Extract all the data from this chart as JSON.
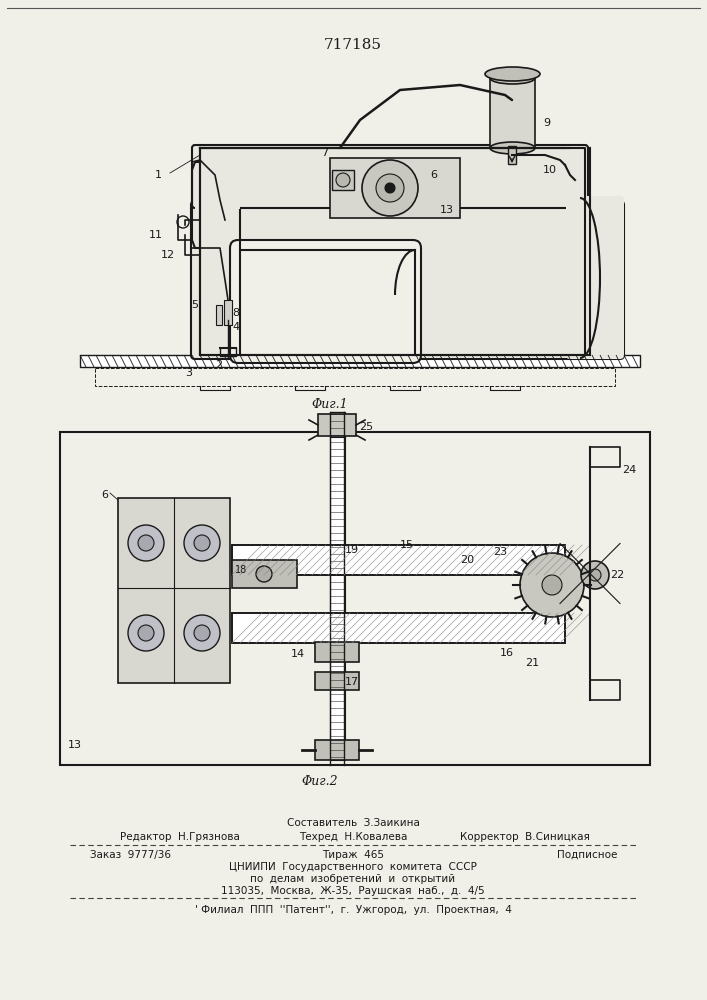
{
  "title": "717185",
  "bg_color": "#f0efe8",
  "line_color": "#1a1a1a",
  "fig1_caption": "Φиг.1",
  "fig2_caption": "Φиг.2",
  "footer": {
    "line1_left": "Редактор  Н.Грязнова",
    "line1_center": "Составитель  З.Заикина",
    "line2_center": "Техред  Н.Ковалева",
    "line2_right": "Корректор  В.Синицкая",
    "line3_left": "Заказ  9777/36",
    "line3_center": "Тираж  465",
    "line3_right": "Подписное",
    "line4": "ЦНИИПИ  Государственного  комитета  СССР",
    "line5": "по  делам  изобретений  и  открытий",
    "line6": "113035,  Москва,  Ж-35,  Раушская  наб.,  д.  4/5",
    "line7": "' Филиал  ППП  ''Патент'',  г.  Ужгород,  ул.  Проектная,  4"
  }
}
